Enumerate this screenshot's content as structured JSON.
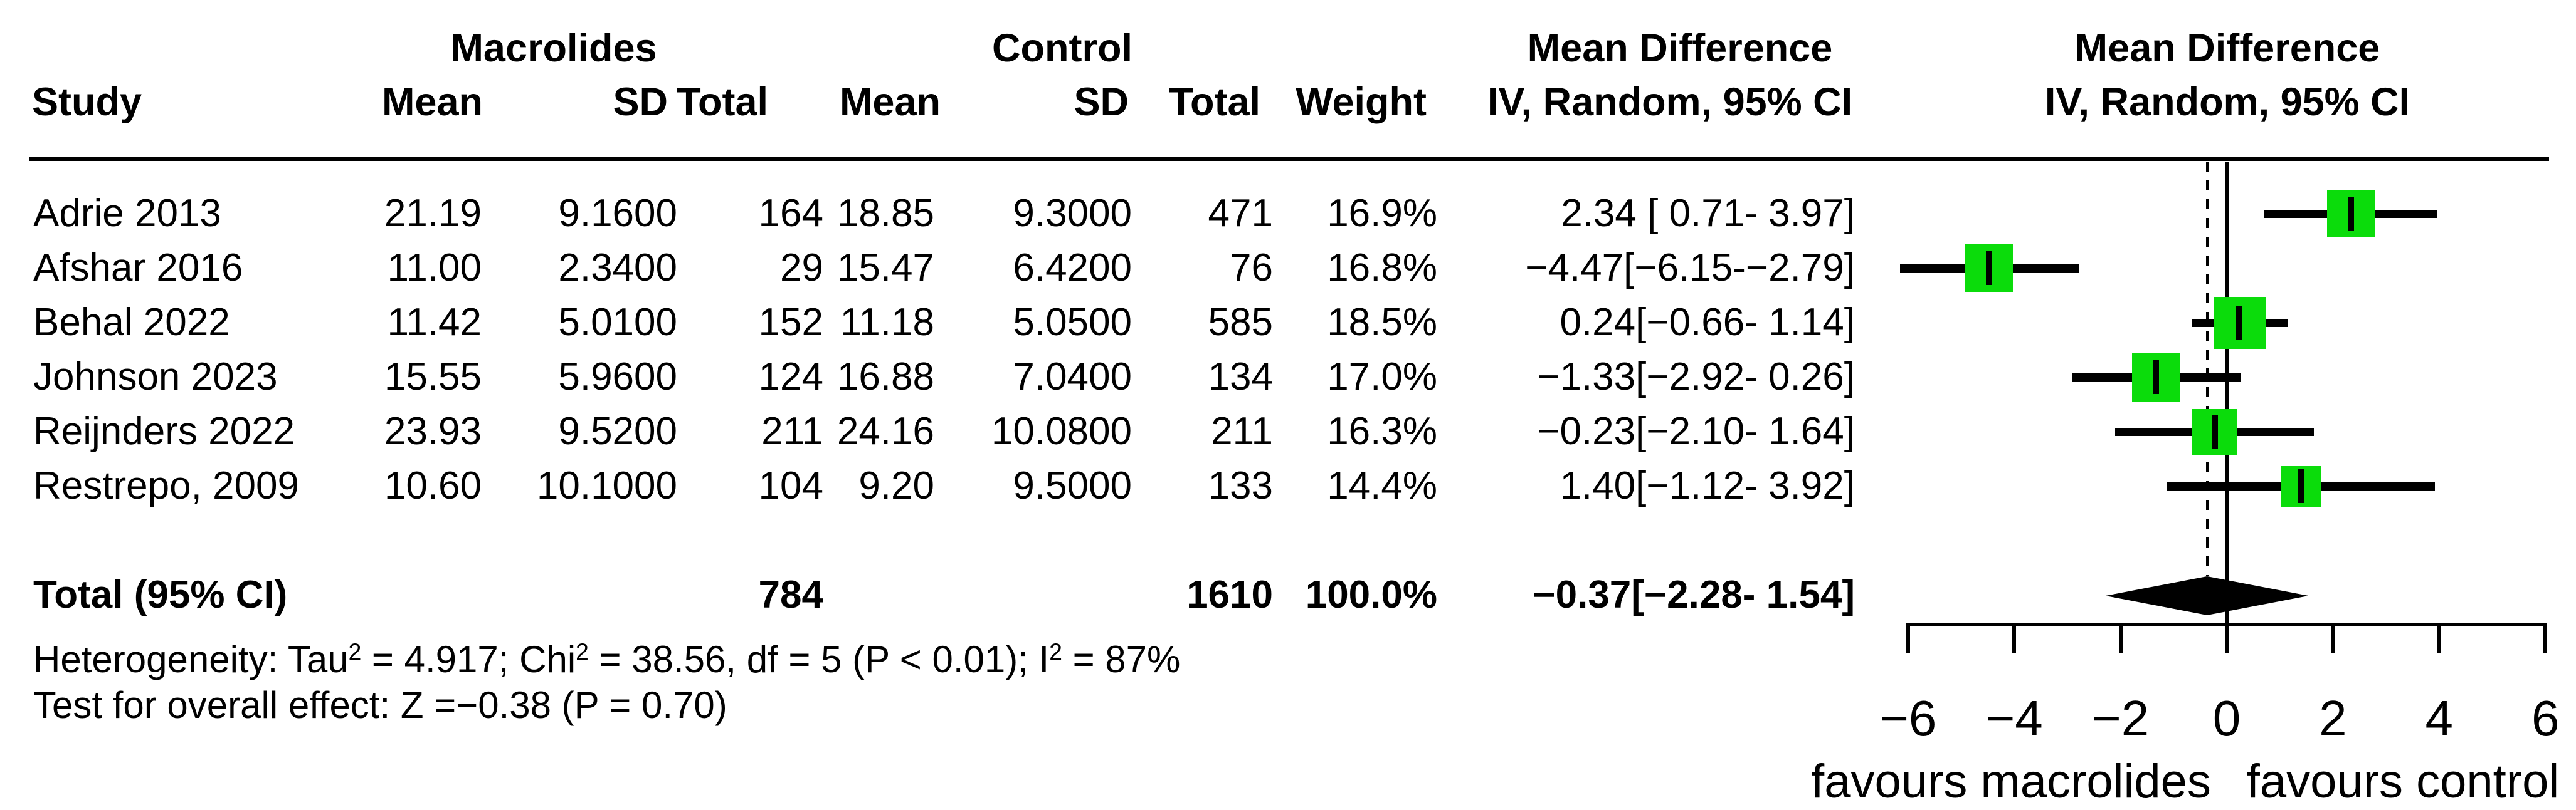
{
  "header": {
    "group1": "Macrolides",
    "group2": "Control",
    "mean_difference": "Mean Difference",
    "method_ci": "IV, Random, 95% CI",
    "col_study": "Study",
    "col_mean": "Mean",
    "col_sd": "SD",
    "col_total": "Total",
    "col_weight": "Weight"
  },
  "table": {
    "rows": [
      {
        "study": "Adrie 2013",
        "mean1": "21.19",
        "sd1": "9.1600",
        "total1": "164",
        "mean2": "18.85",
        "sd2": "9.3000",
        "total2": "471",
        "weight": "16.9%",
        "md_ci": "2.34 [ 0.71- 3.97]"
      },
      {
        "study": "Afshar 2016",
        "mean1": "11.00",
        "sd1": "2.3400",
        "total1": "29",
        "mean2": "15.47",
        "sd2": "6.4200",
        "total2": "76",
        "weight": "16.8%",
        "md_ci": "−4.47[−6.15-−2.79]"
      },
      {
        "study": "Behal 2022",
        "mean1": "11.42",
        "sd1": "5.0100",
        "total1": "152",
        "mean2": "11.18",
        "sd2": "5.0500",
        "total2": "585",
        "weight": "18.5%",
        "md_ci": "0.24[−0.66- 1.14]"
      },
      {
        "study": "Johnson 2023",
        "mean1": "15.55",
        "sd1": "5.9600",
        "total1": "124",
        "mean2": "16.88",
        "sd2": "7.0400",
        "total2": "134",
        "weight": "17.0%",
        "md_ci": "−1.33[−2.92- 0.26]"
      },
      {
        "study": "Reijnders 2022",
        "mean1": "23.93",
        "sd1": "9.5200",
        "total1": "211",
        "mean2": "24.16",
        "sd2": "10.0800",
        "total2": "211",
        "weight": "16.3%",
        "md_ci": "−0.23[−2.10- 1.64]"
      },
      {
        "study": "Restrepo, 2009",
        "mean1": "10.60",
        "sd1": "10.1000",
        "total1": "104",
        "mean2": "9.20",
        "sd2": "9.5000",
        "total2": "133",
        "weight": "14.4%",
        "md_ci": "1.40[−1.12- 3.92]"
      }
    ],
    "total_row": {
      "label": "Total (95% CI)",
      "total1": "784",
      "total2": "1610",
      "weight": "100.0%",
      "md_ci": "−0.37[−2.28- 1.54]"
    }
  },
  "footnotes": {
    "het_p1": "Heterogeneity: Tau",
    "het_s1": "2",
    "het_p2": " = 4.917; Chi",
    "het_s2": "2",
    "het_p3": " = 38.56, df = 5 (P < 0.01); I",
    "het_s3": "2",
    "het_p4": " = 87%",
    "overall": "Test for overall effect: Z =−0.38 (P = 0.70)"
  },
  "chart_data": {
    "type": "forest",
    "title": "",
    "xlabel_left": "favours macrolides",
    "xlabel_right": "favours control",
    "axis": {
      "tick_values": [
        -6,
        -4,
        -2,
        0,
        2,
        4,
        6
      ],
      "tick_labels": [
        "−6",
        "−4",
        "−2",
        "0",
        "2",
        "4",
        "6"
      ],
      "xlim": [
        -6,
        6
      ],
      "null_line": 0,
      "grid": false
    },
    "studies": [
      {
        "name": "Adrie 2013",
        "mean_t": 21.19,
        "sd_t": 9.16,
        "n_t": 164,
        "mean_c": 18.85,
        "sd_c": 9.3,
        "n_c": 471,
        "weight_pct": 16.9,
        "md": 2.34,
        "ci_low": 0.71,
        "ci_high": 3.97
      },
      {
        "name": "Afshar 2016",
        "mean_t": 11.0,
        "sd_t": 2.34,
        "n_t": 29,
        "mean_c": 15.47,
        "sd_c": 6.42,
        "n_c": 76,
        "weight_pct": 16.8,
        "md": -4.47,
        "ci_low": -6.15,
        "ci_high": -2.79
      },
      {
        "name": "Behal 2022",
        "mean_t": 11.42,
        "sd_t": 5.01,
        "n_t": 152,
        "mean_c": 11.18,
        "sd_c": 5.05,
        "n_c": 585,
        "weight_pct": 18.5,
        "md": 0.24,
        "ci_low": -0.66,
        "ci_high": 1.14
      },
      {
        "name": "Johnson 2023",
        "mean_t": 15.55,
        "sd_t": 5.96,
        "n_t": 124,
        "mean_c": 16.88,
        "sd_c": 7.04,
        "n_c": 134,
        "weight_pct": 17.0,
        "md": -1.33,
        "ci_low": -2.92,
        "ci_high": 0.26
      },
      {
        "name": "Reijnders 2022",
        "mean_t": 23.93,
        "sd_t": 9.52,
        "n_t": 211,
        "mean_c": 24.16,
        "sd_c": 10.08,
        "n_c": 211,
        "weight_pct": 16.3,
        "md": -0.23,
        "ci_low": -2.1,
        "ci_high": 1.64
      },
      {
        "name": "Restrepo, 2009",
        "mean_t": 10.6,
        "sd_t": 10.1,
        "n_t": 104,
        "mean_c": 9.2,
        "sd_c": 9.5,
        "n_c": 133,
        "weight_pct": 14.4,
        "md": 1.4,
        "ci_low": -1.12,
        "ci_high": 3.92
      }
    ],
    "pooled": {
      "n_t": 784,
      "n_c": 1610,
      "weight_pct": 100.0,
      "md": -0.37,
      "ci_low": -2.28,
      "ci_high": 1.54
    },
    "heterogeneity": {
      "tau2": 4.917,
      "chi2": 38.56,
      "df": 5,
      "p": "< 0.01",
      "i2_pct": 87
    },
    "overall_effect": {
      "z": -0.38,
      "p": 0.7
    },
    "colors": {
      "square": "#0BDC0B",
      "line": "#000000",
      "diamond": "#000000"
    }
  }
}
